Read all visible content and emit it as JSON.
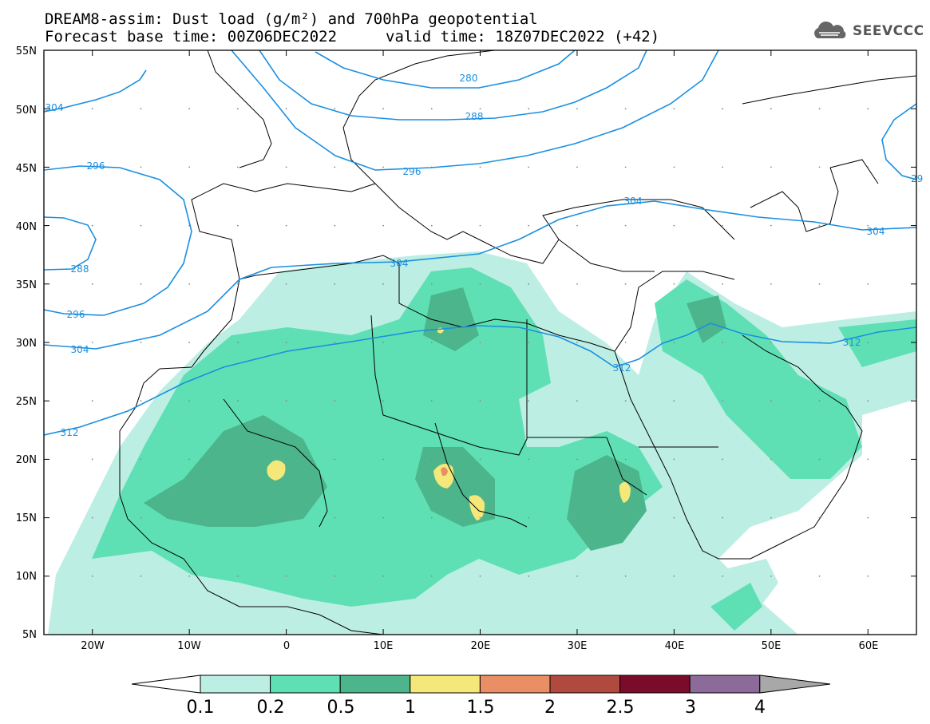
{
  "header": {
    "title_line1": "DREAM8-assim: Dust load (g/m²) and 700hPa geopotential",
    "title_line2": "Forecast base time: 00Z06DEC2022",
    "valid_time": "valid time: 18Z07DEC2022 (+42)",
    "logo_text": "SEEVCCC",
    "logo_icon": "cloud-icon"
  },
  "axes": {
    "lat_labels": [
      "55N",
      "50N",
      "45N",
      "40N",
      "35N",
      "30N",
      "25N",
      "20N",
      "15N",
      "10N",
      "5N"
    ],
    "lon_labels": [
      "20W",
      "10W",
      "0",
      "10E",
      "20E",
      "30E",
      "40E",
      "50E",
      "60E"
    ]
  },
  "contours": {
    "color": "#1a8fe0",
    "labels": [
      "304",
      "296",
      "288",
      "296",
      "304",
      "312",
      "280",
      "288",
      "296",
      "304",
      "304",
      "304",
      "312",
      "312",
      "29"
    ]
  },
  "colorbar": {
    "levels": [
      "0.1",
      "0.2",
      "0.5",
      "1",
      "1.5",
      "2",
      "2.5",
      "3",
      "4"
    ],
    "colors": [
      "#ffffff",
      "#bdeee4",
      "#5fe0b4",
      "#4cb58c",
      "#f5e87a",
      "#e98e65",
      "#b04a3e",
      "#7a0c2a",
      "#8c6a9a",
      "#a8a8a8"
    ]
  }
}
